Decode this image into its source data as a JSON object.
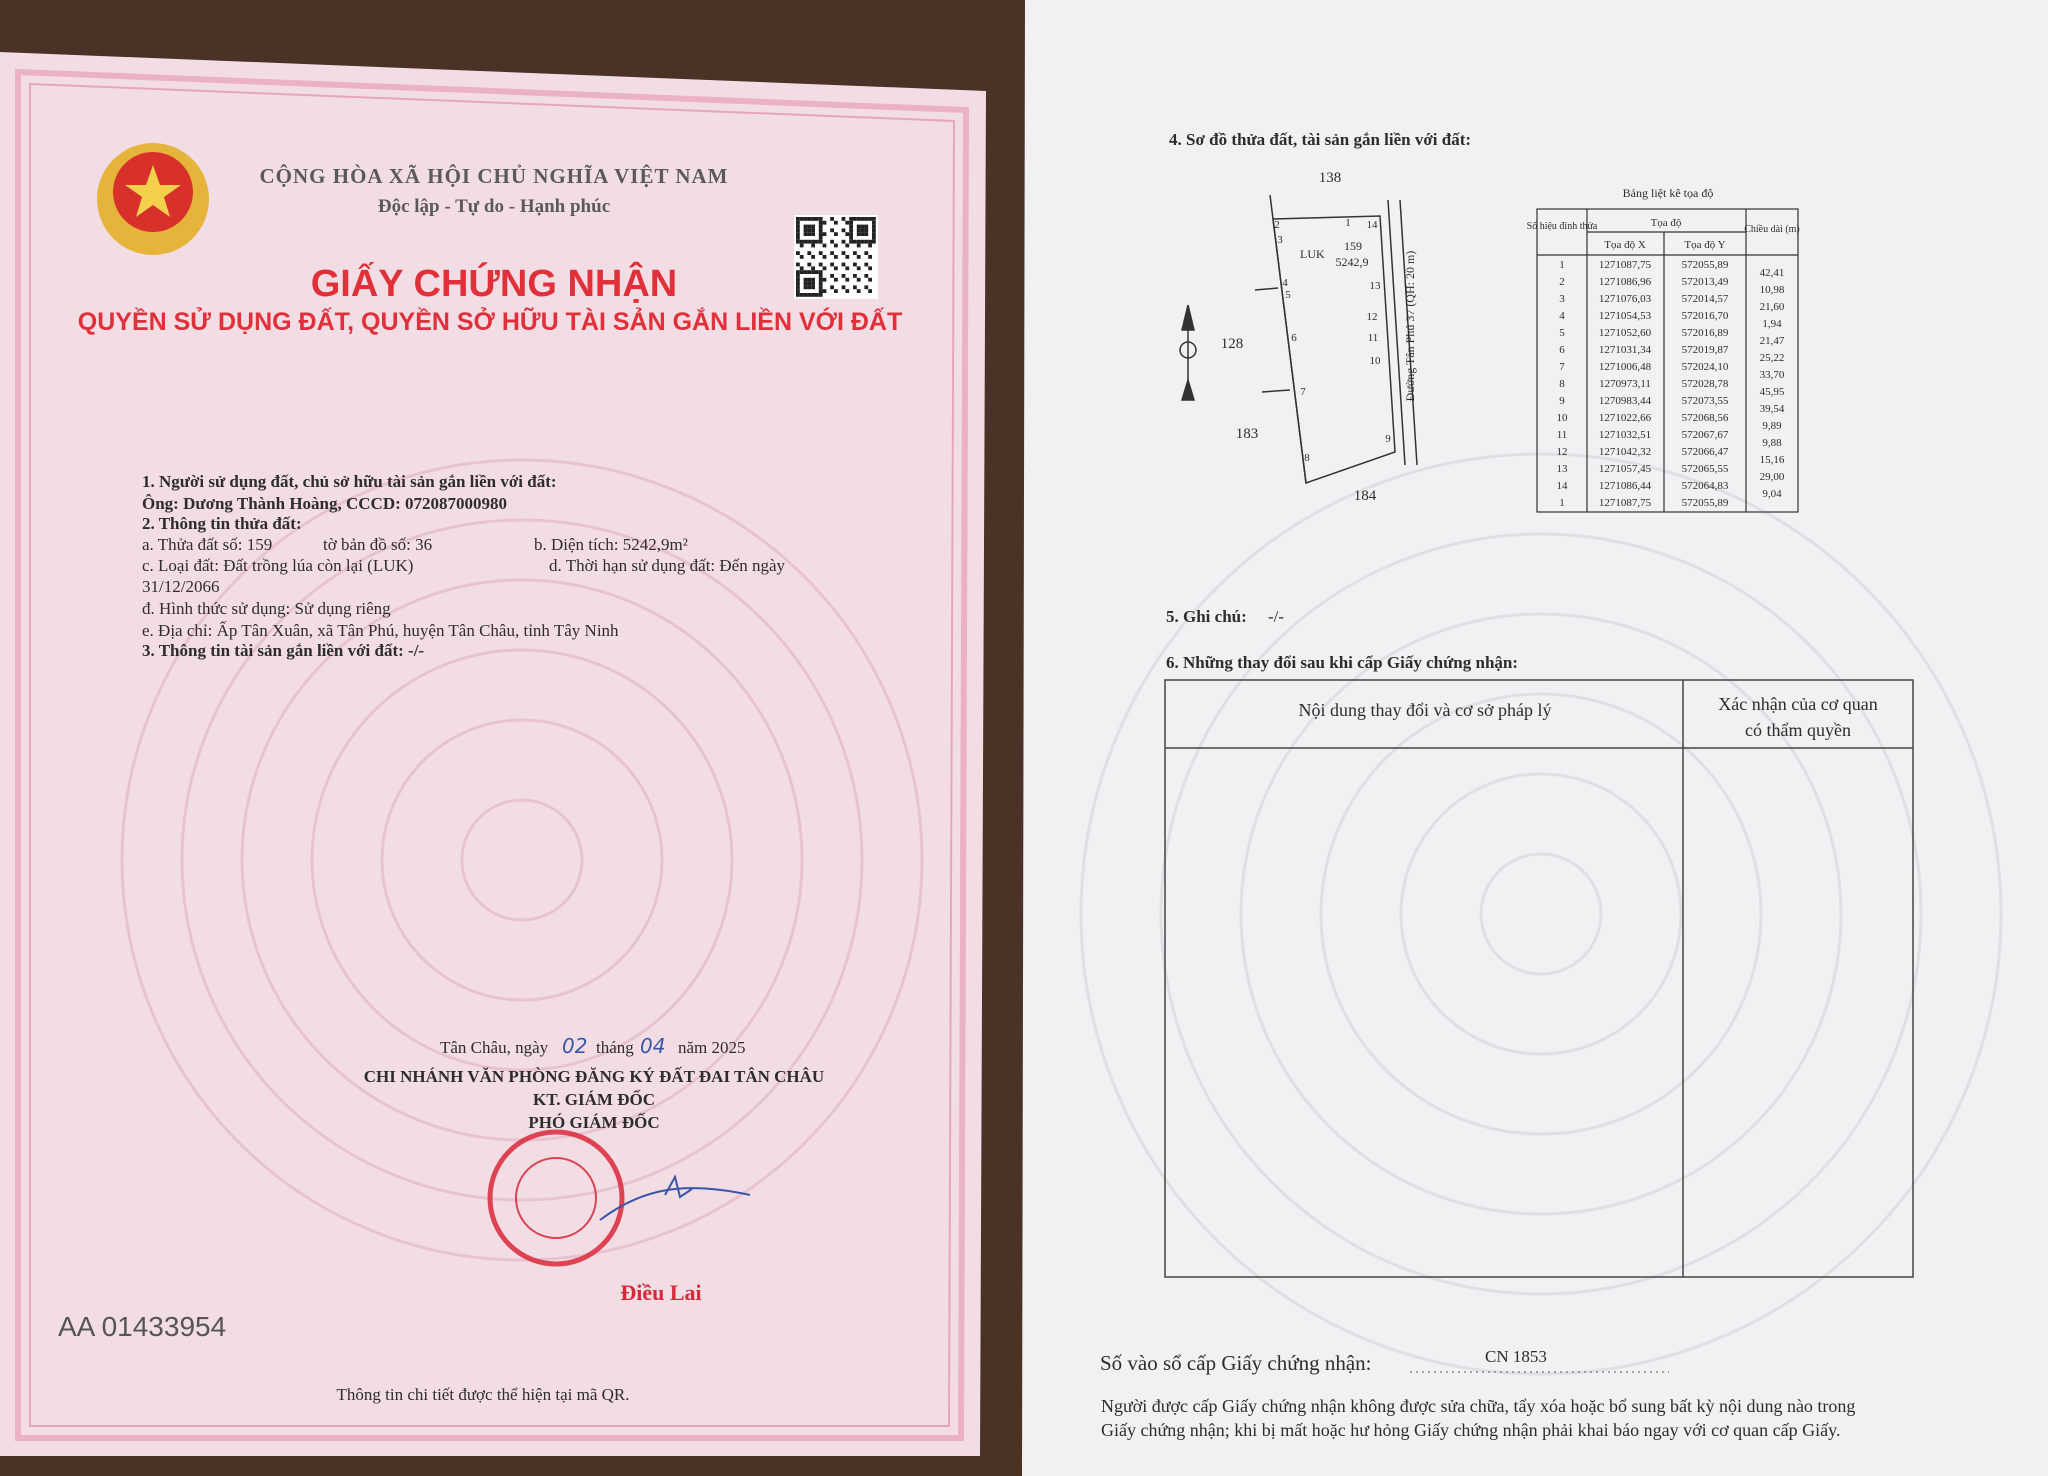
{
  "left_page": {
    "header": {
      "country": "CỘNG HÒA XÃ HỘI CHỦ NGHĨA VIỆT NAM",
      "motto": "Độc lập - Tự do - Hạnh phúc"
    },
    "title": "GIẤY CHỨNG NHẬN",
    "subtitle": "QUYỀN SỬ DỤNG ĐẤT, QUYỀN SỞ HỮU TÀI SẢN GẮN LIỀN VỚI ĐẤT",
    "sections": {
      "owner_heading": "1. Người sử dụng đất, chủ sở hữu tài sản gắn liền với đất:",
      "owner": "Ông: Dương Thành Hoàng, CCCD: 072087000980",
      "parcel_heading": "2. Thông tin thửa đất:",
      "parcel_number": "a. Thửa đất số: 159",
      "map_sheet": "tờ bản đồ số: 36",
      "area": "b. Diện tích: 5242,9m²",
      "land_type": "c. Loại đất: Đất trồng lúa còn lại (LUK)",
      "term": "d. Thời hạn sử dụng đất: Đến ngày",
      "term_date": "31/12/2066",
      "usage": "đ. Hình thức sử dụng: Sử dụng riêng",
      "address": "e. Địa chỉ: Ấp Tân Xuân, xã Tân Phú, huyện Tân Châu, tỉnh Tây Ninh",
      "assets": "3. Thông tin tài sản gắn liền với đất: -/-"
    },
    "signing": {
      "place": "Tân Châu, ngày",
      "day": "02",
      "month_word": "tháng",
      "month": "04",
      "year": "năm 2025",
      "office": "CHI NHÁNH VĂN PHÒNG ĐĂNG KÝ ĐẤT ĐAI TÂN CHÂU",
      "on_behalf": "KT. GIÁM ĐỐC",
      "position": "PHÓ GIÁM ĐỐC",
      "signer": "Điều Lai"
    },
    "serial": "AA 01433954",
    "qr_note": "Thông tin chi tiết được thể hiện tại mã QR."
  },
  "right_page": {
    "plot_heading": "4. Sơ đồ thửa đất, tài sản gắn liền với đất:",
    "plot": {
      "neighbors": [
        "138",
        "128",
        "183",
        "184"
      ],
      "land_code": "LUK",
      "parcel": "159",
      "area": "5242,9",
      "road": "Đường Tân Phú 37 (QH: 20 m)",
      "vertices": [
        "1",
        "14",
        "2",
        "3",
        "4",
        "5",
        "13",
        "12",
        "11",
        "10",
        "6",
        "7",
        "9",
        "8"
      ]
    },
    "coord_table": {
      "title": "Bảng liệt kê tọa độ",
      "headers": {
        "id": "Số hiệu đỉnh thửa",
        "coord": "Tọa độ",
        "x": "Tọa độ X",
        "y": "Tọa độ Y",
        "length": "Chiều dài (m)"
      },
      "rows": [
        [
          "1",
          "1271087,75",
          "572055,89"
        ],
        [
          "2",
          "1271086,96",
          "572013,49"
        ],
        [
          "3",
          "1271076,03",
          "572014,57"
        ],
        [
          "4",
          "1271054,53",
          "572016,70"
        ],
        [
          "5",
          "1271052,60",
          "572016,89"
        ],
        [
          "6",
          "1271031,34",
          "572019,87"
        ],
        [
          "7",
          "1271006,48",
          "572024,10"
        ],
        [
          "8",
          "1270973,11",
          "572028,78"
        ],
        [
          "9",
          "1270983,44",
          "572073,55"
        ],
        [
          "10",
          "1271022,66",
          "572068,56"
        ],
        [
          "11",
          "1271032,51",
          "572067,67"
        ],
        [
          "12",
          "1271042,32",
          "572066,47"
        ],
        [
          "13",
          "1271057,45",
          "572065,55"
        ],
        [
          "14",
          "1271086,44",
          "572064,83"
        ],
        [
          "1",
          "1271087,75",
          "572055,89"
        ]
      ],
      "lengths": [
        "42,41",
        "10,98",
        "21,60",
        "1,94",
        "21,47",
        "25,22",
        "33,70",
        "45,95",
        "39,54",
        "9,89",
        "9,88",
        "15,16",
        "29,00",
        "9,04"
      ]
    },
    "notes_heading": "5. Ghi chú:",
    "notes": "-/-",
    "changes_heading": "6. Những thay đổi sau khi cấp Giấy chứng nhận:",
    "changes_table": {
      "col1": "Nội dung thay đổi và cơ sở pháp lý",
      "col2": [
        "Xác nhận của cơ quan",
        "có thẩm quyền"
      ]
    },
    "register_label": "Số vào sổ cấp Giấy chứng nhận:",
    "register_number": "CN 1853",
    "footer": [
      "Người được cấp Giấy chứng nhận không được sửa chữa, tẩy xóa hoặc bổ sung bất kỳ nội dung nào trong",
      "Giấy chứng nhận; khi bị mất hoặc hư hỏng Giấy chứng nhận phải khai báo ngay với cơ quan cấp Giấy."
    ]
  }
}
